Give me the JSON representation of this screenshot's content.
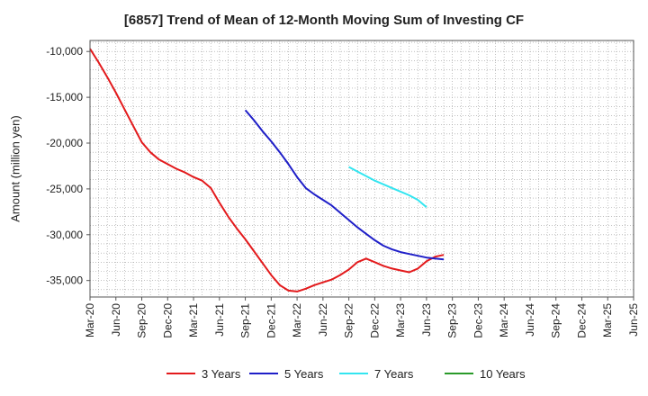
{
  "chart_data": {
    "type": "line",
    "title": "[6857]  Trend of Mean of 12-Month Moving Sum of Investing CF",
    "xlabel": "",
    "ylabel": "Amount (million yen)",
    "ylim": [
      -36800,
      -8800
    ],
    "yticks": [
      -10000,
      -15000,
      -20000,
      -25000,
      -30000,
      -35000
    ],
    "ytick_labels": [
      "-10,000",
      "-15,000",
      "-20,000",
      "-25,000",
      "-30,000",
      "-35,000"
    ],
    "x_categories": [
      "Mar-20",
      "Jun-20",
      "Sep-20",
      "Dec-20",
      "Mar-21",
      "Jun-21",
      "Sep-21",
      "Dec-21",
      "Mar-22",
      "Jun-22",
      "Sep-22",
      "Dec-22",
      "Mar-23",
      "Jun-23",
      "Sep-23",
      "Dec-23",
      "Mar-24",
      "Jun-24",
      "Sep-24",
      "Dec-24",
      "Mar-25",
      "Jun-25"
    ],
    "grid": true,
    "legend_position": "bottom",
    "series": [
      {
        "name": "3 Years",
        "color": "#e31a1c",
        "start_index": 0,
        "values": [
          -9700,
          -11200,
          -12800,
          -14500,
          -16300,
          -18100,
          -19900,
          -21000,
          -21800,
          -22300,
          -22800,
          -23200,
          -23700,
          -24100,
          -24900,
          -26500,
          -28000,
          -29300,
          -30500,
          -31800,
          -33100,
          -34400,
          -35500,
          -36100,
          -36200,
          -35900,
          -35500,
          -35200,
          -34900,
          -34400,
          -33800,
          -33000,
          -32600,
          -33000,
          -33400,
          -33700,
          -33900,
          -34100,
          -33700,
          -32900,
          -32400,
          -32200
        ]
      },
      {
        "name": "5 Years",
        "color": "#1f1fc8",
        "start_index": 18,
        "values": [
          -16400,
          -17500,
          -18700,
          -19800,
          -21000,
          -22300,
          -23700,
          -24900,
          -25600,
          -26200,
          -26800,
          -27600,
          -28400,
          -29200,
          -29900,
          -30600,
          -31200,
          -31600,
          -31900,
          -32100,
          -32300,
          -32500,
          -32600,
          -32700
        ]
      },
      {
        "name": "7 Years",
        "color": "#33e5f0",
        "start_index": 30,
        "values": [
          -22600,
          -23100,
          -23600,
          -24100,
          -24500,
          -24900,
          -25300,
          -25700,
          -26200,
          -27000
        ]
      },
      {
        "name": "10 Years",
        "color": "#2a9a2a",
        "start_index": 0,
        "values": []
      }
    ]
  }
}
